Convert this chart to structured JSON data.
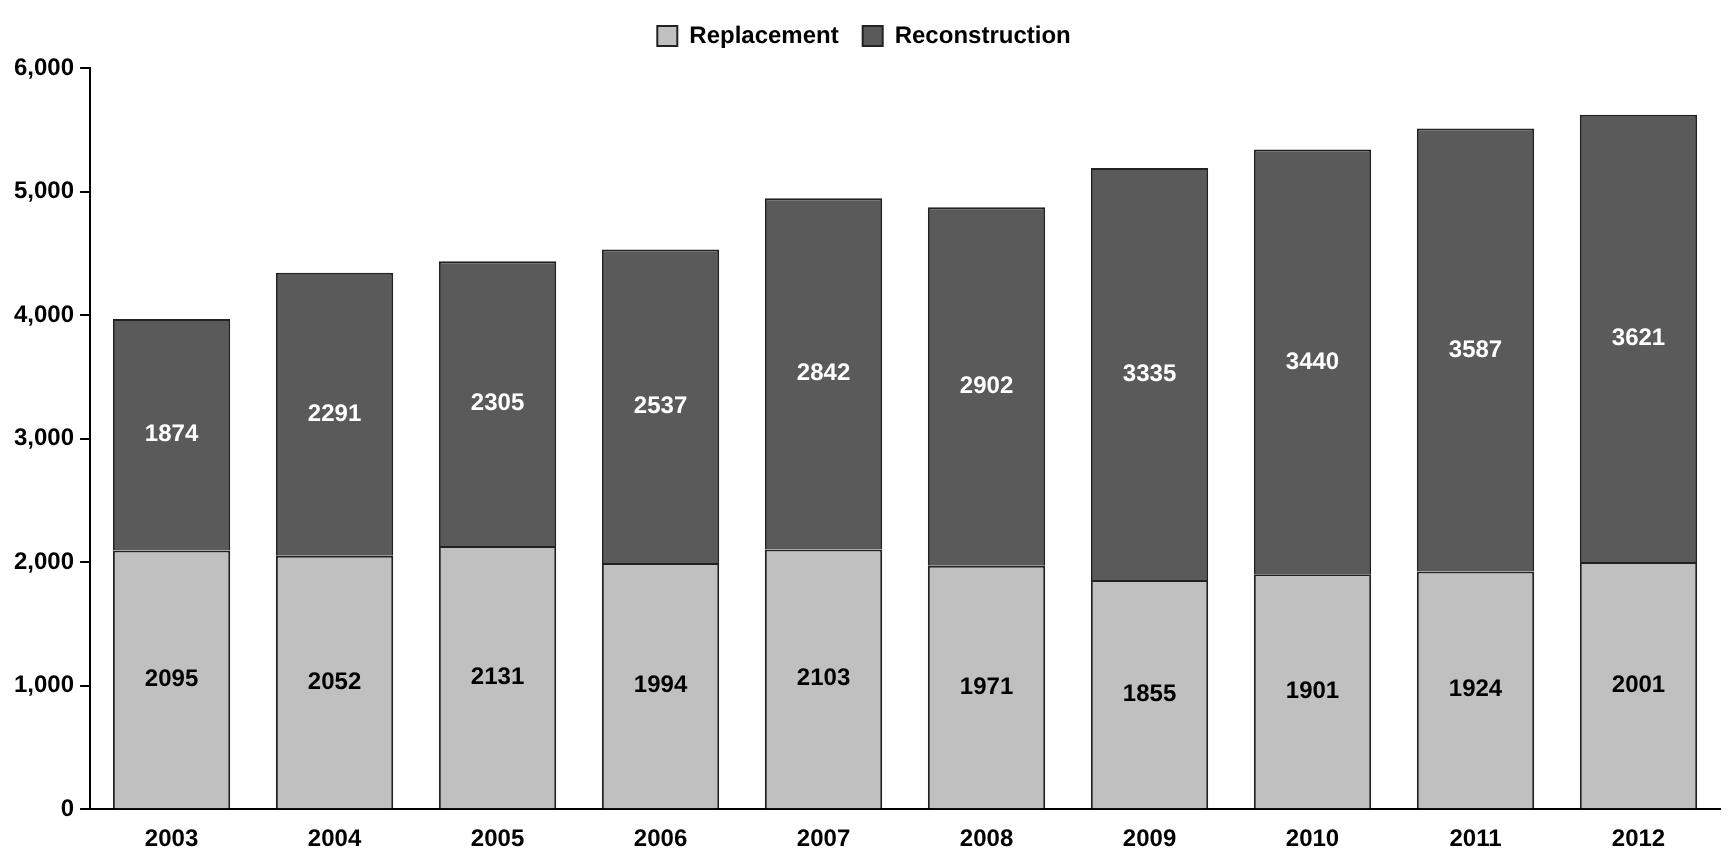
{
  "chart_data": {
    "type": "bar",
    "stacked": true,
    "categories": [
      "2003",
      "2004",
      "2005",
      "2006",
      "2007",
      "2008",
      "2009",
      "2010",
      "2011",
      "2012"
    ],
    "series": [
      {
        "name": "Replacement",
        "color": "#c0c0c0",
        "values": [
          2095,
          2052,
          2131,
          1994,
          2103,
          1971,
          1855,
          1901,
          1924,
          2001
        ]
      },
      {
        "name": "Reconstruction",
        "color": "#5a5a5a",
        "values": [
          1874,
          2291,
          2305,
          2537,
          2842,
          2902,
          3335,
          3440,
          3587,
          3621
        ]
      }
    ],
    "ylim": [
      0,
      6000
    ],
    "yticks": [
      {
        "value": 0,
        "label": "0"
      },
      {
        "value": 1000,
        "label": "1,000"
      },
      {
        "value": 2000,
        "label": "2,000"
      },
      {
        "value": 3000,
        "label": "3,000"
      },
      {
        "value": 4000,
        "label": "4,000"
      },
      {
        "value": 5000,
        "label": "5,000"
      },
      {
        "value": 6000,
        "label": "6,000"
      }
    ],
    "grid": false,
    "legend": "top",
    "data_labels": true
  }
}
